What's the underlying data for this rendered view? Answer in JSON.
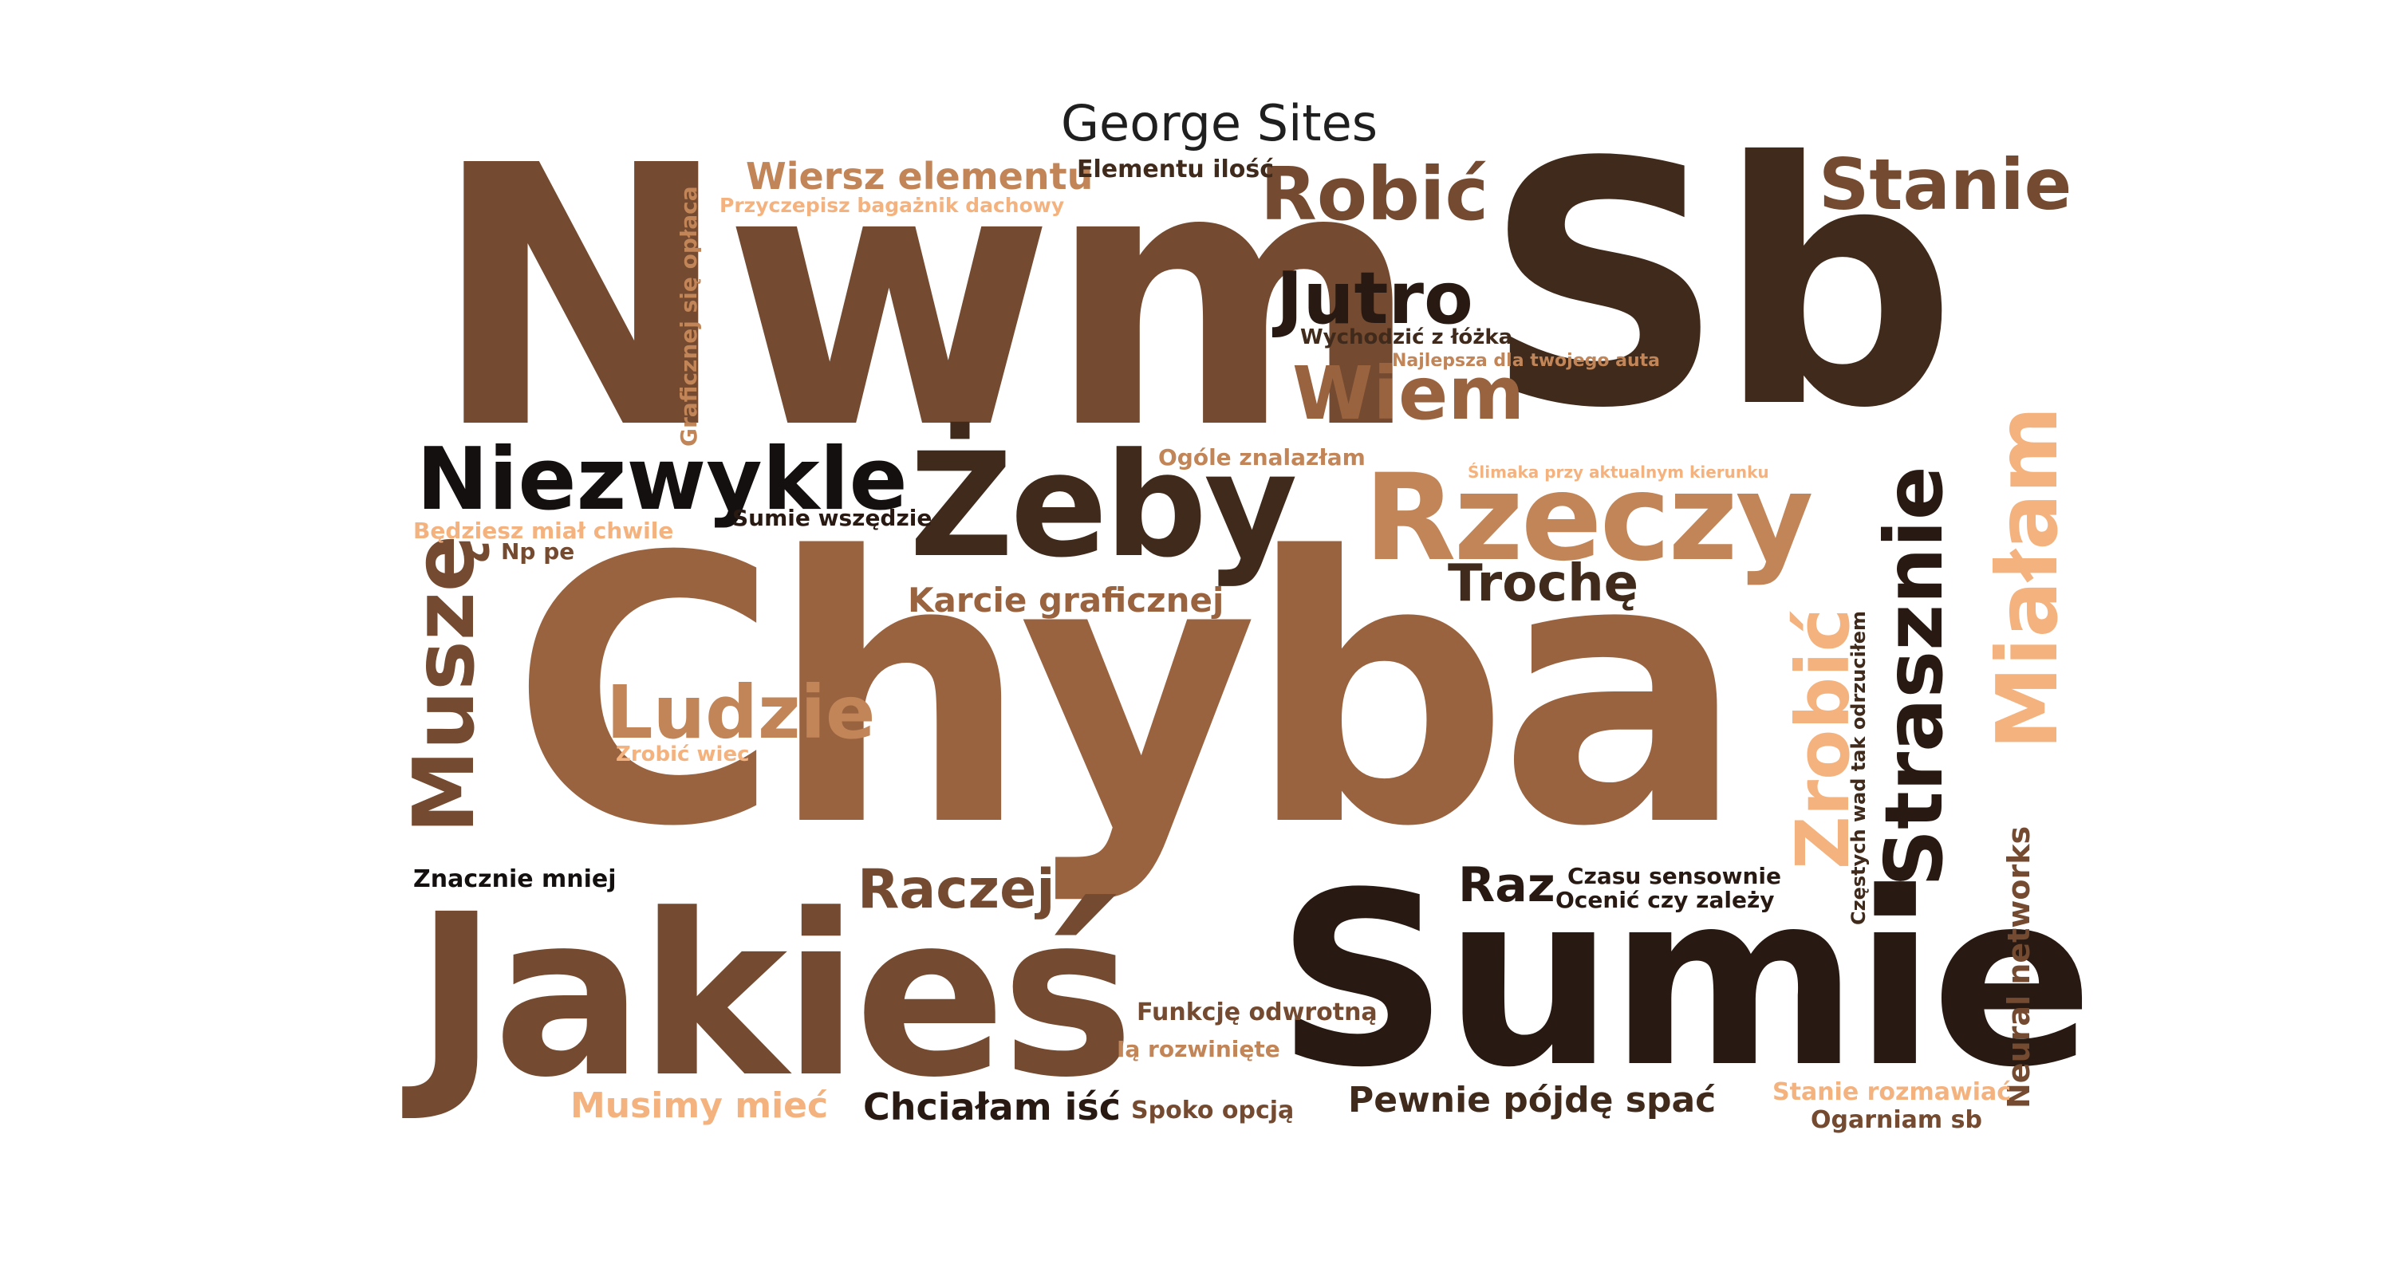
{
  "title": "George Sites",
  "colors": {
    "dark": "#281a12",
    "dark_brown": "#3f2a1b",
    "brown": "#744a30",
    "mid_brown": "#9a6340",
    "light_brown": "#c18558",
    "tan": "#f4b27e",
    "black": "#141010"
  },
  "words": [
    "Nwm",
    "Sb",
    "Chyba",
    "Sumie",
    "Jakieś",
    "Żeby",
    "Rzeczy",
    "Robić",
    "Stanie",
    "Jutro",
    "Wiem",
    "Niezwykle",
    "Muszę",
    "Ludzie",
    "Raczej",
    "Trochę",
    "Zrobić",
    "Strasznie",
    "Miałam",
    "Wiersz elementu",
    "Elementu ilość",
    "Przyczepisz bagażnik dachowy",
    "Graficznej się opłaca",
    "Wychodzić z łóżka",
    "Najlepsza dla twojego auta",
    "Ogóle znalazłam",
    "Ślimaka przy aktualnym kierunku",
    "Będziesz miał chwile",
    "Sumie wszędzie",
    "Np pe",
    "Karcie graficznej",
    "Zrobić wiec",
    "Znacznie mniej",
    "Raz",
    "Czasu sensownie",
    "Ocenić czy zależy",
    "Częstych wad tak odrzuciłem",
    "Neural networks",
    "Funkcję odwrotną",
    "Ią rozwinięte",
    "Musimy mieć",
    "Chciałam iść",
    "Spoko opcją",
    "Pewnie pójdę spać",
    "Stanie rozmawiać",
    "Ogarniam sb"
  ]
}
